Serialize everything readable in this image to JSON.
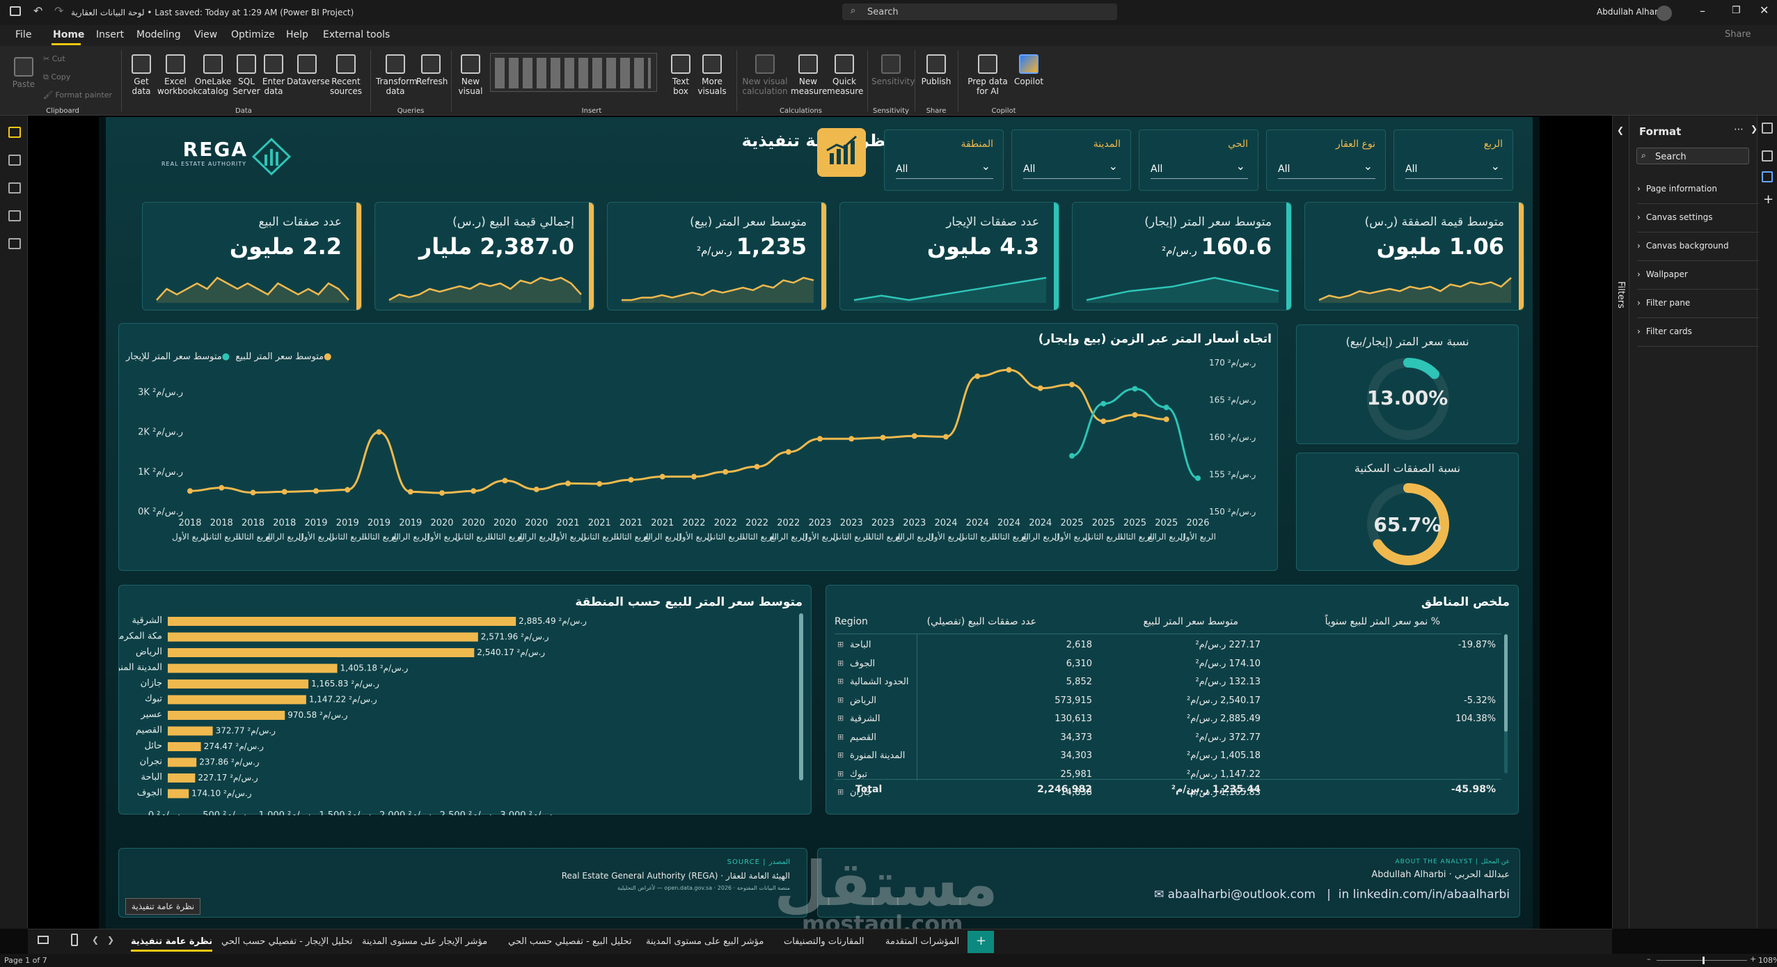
{
  "window": {
    "title": "لوحة البيانات العقارية • Last saved: Today at 1:29 AM (Power BI Project)",
    "search_placeholder": "Search",
    "user": "Abdullah Alharbi",
    "share": "Share"
  },
  "ribbon_tabs": [
    "File",
    "Home",
    "Insert",
    "Modeling",
    "View",
    "Optimize",
    "Help",
    "External tools"
  ],
  "ribbon": {
    "clipboard": {
      "paste": "Paste",
      "cut": "Cut",
      "copy": "Copy",
      "format_painter": "Format painter",
      "group": "Clipboard"
    },
    "data": [
      {
        "label": "Get data"
      },
      {
        "label": "Excel workbook"
      },
      {
        "label": "OneLake catalog"
      },
      {
        "label": "SQL Server"
      },
      {
        "label": "Enter data"
      },
      {
        "label": "Dataverse"
      },
      {
        "label": "Recent sources"
      }
    ],
    "data_group": "Data",
    "queries": [
      {
        "label": "Transform data"
      },
      {
        "label": "Refresh"
      }
    ],
    "queries_group": "Queries",
    "insert": [
      {
        "label": "New visual"
      },
      {
        "label": "Text box"
      },
      {
        "label": "More visuals"
      }
    ],
    "insert_group": "Insert",
    "calc": [
      {
        "label": "New visual calculation"
      },
      {
        "label": "New measure"
      },
      {
        "label": "Quick measure"
      }
    ],
    "calc_group": "Calculations",
    "sensitivity": "Sensitivity",
    "sensitivity_group": "Sensitivity",
    "publish": "Publish",
    "share_group": "Share",
    "copilot": [
      {
        "label": "Prep data for AI"
      },
      {
        "label": "Copilot"
      }
    ],
    "copilot_group": "Copilot"
  },
  "report": {
    "logo_text": "REGA",
    "logo_sub": "REAL ESTATE AUTHORITY",
    "title": "نظرة عامة تنفيذية",
    "filters": [
      {
        "label": "الربع",
        "value": "All"
      },
      {
        "label": "نوع العقار",
        "value": "All"
      },
      {
        "label": "الحي",
        "value": "All"
      },
      {
        "label": "المدينة",
        "value": "All"
      },
      {
        "label": "المنطقة",
        "value": "All"
      }
    ],
    "kpis": [
      {
        "label": "متوسط قيمة الصفقة (ر.س)",
        "value": "1.06 مليون",
        "unit": "",
        "color": "#f0b94e",
        "spark": [
          3,
          4,
          3.5,
          4,
          5,
          4.5,
          5,
          5.5,
          5,
          6,
          5.5,
          6,
          5,
          6.5,
          6,
          7,
          6.5,
          7,
          6,
          8
        ]
      },
      {
        "label": "متوسط سعر المتر (إيجار)",
        "value": "160.6",
        "unit": "ر.س/م²",
        "color": "#2ec4b6",
        "spark": [
          3,
          4,
          5,
          5.5,
          6,
          7,
          8,
          7,
          6,
          5
        ]
      },
      {
        "label": "عدد صفقات الإيجار",
        "value": "4.3 مليون",
        "unit": "",
        "color": "#2ec4b6",
        "spark": [
          3,
          4,
          3,
          4,
          5,
          6,
          7,
          8
        ]
      },
      {
        "label": "متوسط سعر المتر (بيع)",
        "value": "1,235",
        "unit": "ر.س/م²",
        "color": "#f0b94e",
        "spark": [
          3,
          3,
          3.5,
          3.5,
          4,
          3.5,
          4,
          4.5,
          4,
          5,
          4.5,
          5,
          5.5,
          5,
          6,
          5.5,
          7,
          6.5,
          7.5,
          7
        ]
      },
      {
        "label": "إجمالي قيمة البيع (ر.س)",
        "value": "2,387.0 مليار",
        "unit": "",
        "color": "#f0b94e",
        "spark": [
          3,
          4,
          3.5,
          4,
          5,
          4.5,
          5,
          5.5,
          5,
          6,
          5.5,
          6,
          5,
          6.5,
          6,
          7,
          6.5,
          7,
          6,
          4
        ]
      },
      {
        "label": "عدد صفقات البيع",
        "value": "2.2 مليون",
        "unit": "",
        "color": "#f0b94e",
        "spark": [
          3,
          5,
          4,
          5,
          6,
          5,
          7,
          6,
          5,
          6,
          5,
          4,
          6,
          5,
          4,
          5,
          4,
          6,
          5,
          3
        ]
      }
    ],
    "trend": {
      "title": "اتجاه أسعار المتر عبر الزمن (بيع وإيجار)",
      "legend_sale": "متوسط سعر المتر للبيع",
      "legend_rent": "متوسط سعر المتر للإيجار"
    },
    "ratio1": {
      "title": "نسبة سعر المتر (إيجار/بيع)",
      "value": "13.00%"
    },
    "ratio2": {
      "title": "نسبة الصفقات السكنية",
      "value": "65.7%"
    },
    "bar": {
      "title": "متوسط سعر المتر للبيع حسب المنطقة"
    },
    "summary": {
      "title": "ملخص المناطق",
      "headers": [
        "Region",
        "عدد صفقات البيع (تفصيلي)",
        "متوسط سعر المتر للبيع",
        "% نمو سعر المتر للبيع سنوياً"
      ],
      "rows": [
        [
          "الباحة",
          "2,618",
          "227.17 ر.س/م²",
          "-19.87%"
        ],
        [
          "الجوف",
          "6,310",
          "174.10 ر.س/م²",
          ""
        ],
        [
          "الحدود الشمالية",
          "5,852",
          "132.13 ر.س/م²",
          ""
        ],
        [
          "الرياض",
          "573,915",
          "2,540.17 ر.س/م²",
          "-5.32%"
        ],
        [
          "الشرقية",
          "130,613",
          "2,885.49 ر.س/م²",
          "104.38%"
        ],
        [
          "القصيم",
          "34,373",
          "372.77 ر.س/م²",
          ""
        ],
        [
          "المدينة المنورة",
          "34,303",
          "1,405.18 ر.س/م²",
          ""
        ],
        [
          "تبوك",
          "25,981",
          "1,147.22 ر.س/م²",
          ""
        ],
        [
          "جازان",
          "14,838",
          "1,165.83 ر.س/م²",
          ""
        ]
      ],
      "total": [
        "Total",
        "2,246,982",
        "1,235.44 ر.س/م²",
        "-45.98%"
      ]
    },
    "footer": {
      "source_label": "SOURCE | المصدر",
      "source": "الهيئة العامة للعقار · Real Estate General Authority (REGA)",
      "source_sub": "منصة البيانات المفتوحة · open.data.gov.sa · 2026 — لأغراض التحليلية",
      "analyst_label": "ABOUT THE ANALYST | عن المحلل",
      "analyst": "عبدالله الحربي · Abdullah Alharbi",
      "email": "abaalharbi@outlook.com",
      "linkedin": "linkedin.com/in/abaalharbi"
    },
    "watermark": "مستقل",
    "watermark_sub": "mostaql.com",
    "tooltip": "نظرة عامة تنفيذية"
  },
  "right_panel": {
    "title": "Format",
    "filters_label": "Filters",
    "search": "Search",
    "items": [
      "Page information",
      "Canvas settings",
      "Canvas background",
      "Wallpaper",
      "Filter pane",
      "Filter cards"
    ]
  },
  "page_tabs": [
    "نظرة عامة تنفيذية",
    "تحليل الإيجار - تفصيلي حسب الحي",
    "مؤشر الإيجار على مستوى المدينة",
    "تحليل البيع - تفصيلي حسب الحي",
    "مؤشر البيع على مستوى المدينة",
    "المقارنات والتصنيفات",
    "المؤشرات المتقدمة"
  ],
  "status": {
    "page": "Page 1 of 7",
    "zoom": "108%"
  },
  "chart_data": [
    {
      "type": "line",
      "title": "اتجاه أسعار المتر عبر الزمن (بيع وإيجار)",
      "x": [
        "2018 الربع الأول",
        "2018 الربع الثاني",
        "2018 الربع الثالث",
        "2018 الربع الرابع",
        "2019 الربع الأول",
        "2019 الربع الثاني",
        "2019 الربع الثالث",
        "2019 الربع الرابع",
        "2020 الربع الأول",
        "2020 الربع الثاني",
        "2020 الربع الثالث",
        "2020 الربع الرابع",
        "2021 الربع الأول",
        "2021 الربع الثاني",
        "2021 الربع الثالث",
        "2021 الربع الرابع",
        "2022 الربع الأول",
        "2022 الربع الثاني",
        "2022 الربع الثالث",
        "2022 الربع الرابع",
        "2023 الربع الأول",
        "2023 الربع الثاني",
        "2023 الربع الثالث",
        "2023 الربع الرابع",
        "2024 الربع الأول",
        "2024 الربع الثاني",
        "2024 الربع الثالث",
        "2024 الربع الرابع",
        "2025 الربع الأول",
        "2025 الربع الثاني",
        "2025 الربع الثالث",
        "2025 الربع الرابع",
        "2026 الربع الأول"
      ],
      "x_year": [
        "2018",
        "2018",
        "2018",
        "2018",
        "2019",
        "2019",
        "2019",
        "2019",
        "2020",
        "2020",
        "2020",
        "2020",
        "2021",
        "2021",
        "2021",
        "2021",
        "2022",
        "2022",
        "2022",
        "2022",
        "2023",
        "2023",
        "2023",
        "2023",
        "2024",
        "2024",
        "2024",
        "2024",
        "2025",
        "2025",
        "2025",
        "2025",
        "2026"
      ],
      "x_quarter": [
        "الربع الأول",
        "الربع الثاني",
        "الربع الثالث",
        "الربع الرابع",
        "الربع الأول",
        "الربع الثاني",
        "الربع الثالث",
        "الربع الرابع",
        "الربع الأول",
        "الربع الثاني",
        "الربع الثالث",
        "الربع الرابع",
        "الربع الأول",
        "الربع الثاني",
        "الربع الثالث",
        "الربع الرابع",
        "الربع الأول",
        "الربع الثاني",
        "الربع الثالث",
        "الربع الرابع",
        "الربع الأول",
        "الربع الثاني",
        "الربع الثالث",
        "الربع الرابع",
        "الربع الأول",
        "الربع الثاني",
        "الربع الثالث",
        "الربع الرابع",
        "الربع الأول",
        "الربع الثاني",
        "الربع الثالث",
        "الربع الرابع",
        "الربع الأول"
      ],
      "series": [
        {
          "name": "متوسط سعر المتر للبيع",
          "color": "#f0b94e",
          "axis": "left",
          "values": [
            520,
            600,
            480,
            500,
            520,
            550,
            2000,
            500,
            470,
            520,
            780,
            560,
            710,
            700,
            800,
            880,
            880,
            1000,
            1130,
            1500,
            1830,
            1830,
            1860,
            1900,
            1880,
            3400,
            3560,
            3100,
            3190,
            2270,
            2430,
            2320,
            null
          ]
        },
        {
          "name": "متوسط سعر المتر للإيجار",
          "color": "#2ec4b6",
          "axis": "right",
          "values": [
            null,
            null,
            null,
            null,
            null,
            null,
            null,
            null,
            null,
            null,
            null,
            null,
            null,
            null,
            null,
            null,
            null,
            null,
            null,
            null,
            null,
            null,
            null,
            null,
            null,
            null,
            null,
            null,
            157.5,
            164.5,
            166.5,
            164,
            154.5
          ]
        }
      ],
      "left_ticks": [
        "0K ر.س/م²",
        "1K ر.س/م²",
        "2K ر.س/م²",
        "3K ر.س/م²"
      ],
      "right_ticks": [
        "150 ر.س/م²",
        "155 ر.س/م²",
        "160 ر.س/م²",
        "165 ر.س/م²",
        "170 ر.س/م²"
      ],
      "ylim": [
        0,
        3600
      ],
      "y2lim": [
        150,
        170
      ],
      "legend": "top-left"
    },
    {
      "type": "bar",
      "title": "متوسط سعر المتر للبيع حسب المنطقة",
      "categories": [
        "الشرقية",
        "مكة المكرمة",
        "الرياض",
        "المدينة المنورة",
        "جازان",
        "تبوك",
        "عسير",
        "القصيم",
        "حائل",
        "نجران",
        "الباحة",
        "الجوف"
      ],
      "values": [
        2885.49,
        2571.96,
        2540.17,
        1405.18,
        1165.83,
        1147.22,
        970.58,
        372.77,
        274.47,
        237.86,
        227.17,
        174.1
      ],
      "labels": [
        "2,885.49 ر.س/م²",
        "2,571.96 ر.س/م²",
        "2,540.17 ر.س/م²",
        "1,405.18 ر.س/م²",
        "1,165.83 ر.س/م²",
        "1,147.22 ر.س/م²",
        "970.58 ر.س/م²",
        "372.77 ر.س/م²",
        "274.47 ر.س/م²",
        "237.86 ر.س/م²",
        "227.17 ر.س/م²",
        "174.10 ر.س/م²"
      ],
      "x_ticks": [
        "0 ر.س/م²",
        "500 ر.س/م²",
        "1,000 ر.س/م²",
        "1,500 ر.س/م²",
        "2,000 ر.س/م²",
        "2,500 ر.س/م²",
        "3,000 ر.س/م²"
      ],
      "xlim": [
        0,
        3000
      ],
      "color": "#f0b94e"
    },
    {
      "type": "pie",
      "title": "نسبة سعر المتر (إيجار/بيع)",
      "values": [
        13.0,
        87.0
      ],
      "label": "13.00%",
      "colors": [
        "#2ec4b6",
        "#1f4d52"
      ]
    },
    {
      "type": "pie",
      "title": "نسبة الصفقات السكنية",
      "values": [
        65.7,
        34.3
      ],
      "label": "65.7%",
      "colors": [
        "#f0b94e",
        "#1f4d52"
      ]
    }
  ]
}
